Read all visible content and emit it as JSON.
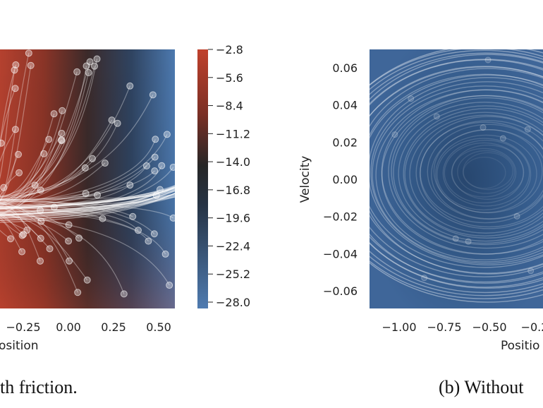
{
  "chart_data": [
    {
      "type": "heatmap",
      "panel": "a",
      "caption": "th friction.",
      "xlabel": "osition",
      "x_ticks": [
        {
          "value": -0.25,
          "label": "−0.25"
        },
        {
          "value": 0.0,
          "label": "0.00"
        },
        {
          "value": 0.25,
          "label": "0.25"
        },
        {
          "value": 0.5,
          "label": "0.50"
        }
      ],
      "colorbar": {
        "ticks": [
          "−2.8",
          "−5.6",
          "−8.4",
          "−11.2",
          "−14.0",
          "−16.8",
          "−19.6",
          "−22.4",
          "−25.2",
          "−28.0"
        ],
        "range": [
          -28.0,
          -2.8
        ],
        "colors": {
          "max": "#c0412c",
          "mid": "#262626",
          "min": "#4f7bb0"
        }
      }
    },
    {
      "type": "heatmap",
      "panel": "b",
      "caption": "(b) Without",
      "xlabel": "Positio",
      "ylabel": "Velocity",
      "x_ticks": [
        {
          "value": -1.0,
          "label": "−1.00"
        },
        {
          "value": -0.75,
          "label": "−0.75"
        },
        {
          "value": -0.5,
          "label": "−0.50"
        },
        {
          "value": -0.25,
          "label": "−0.2"
        }
      ],
      "y_ticks": [
        {
          "value": 0.06,
          "label": "0.06"
        },
        {
          "value": 0.04,
          "label": "0.04"
        },
        {
          "value": 0.02,
          "label": "0.02"
        },
        {
          "value": 0.0,
          "label": "0.00"
        },
        {
          "value": -0.02,
          "label": "−0.02"
        },
        {
          "value": -0.04,
          "label": "−0.04"
        },
        {
          "value": -0.06,
          "label": "−0.06"
        }
      ],
      "ylim": [
        -0.07,
        0.07
      ],
      "color": "#3f6699"
    }
  ]
}
